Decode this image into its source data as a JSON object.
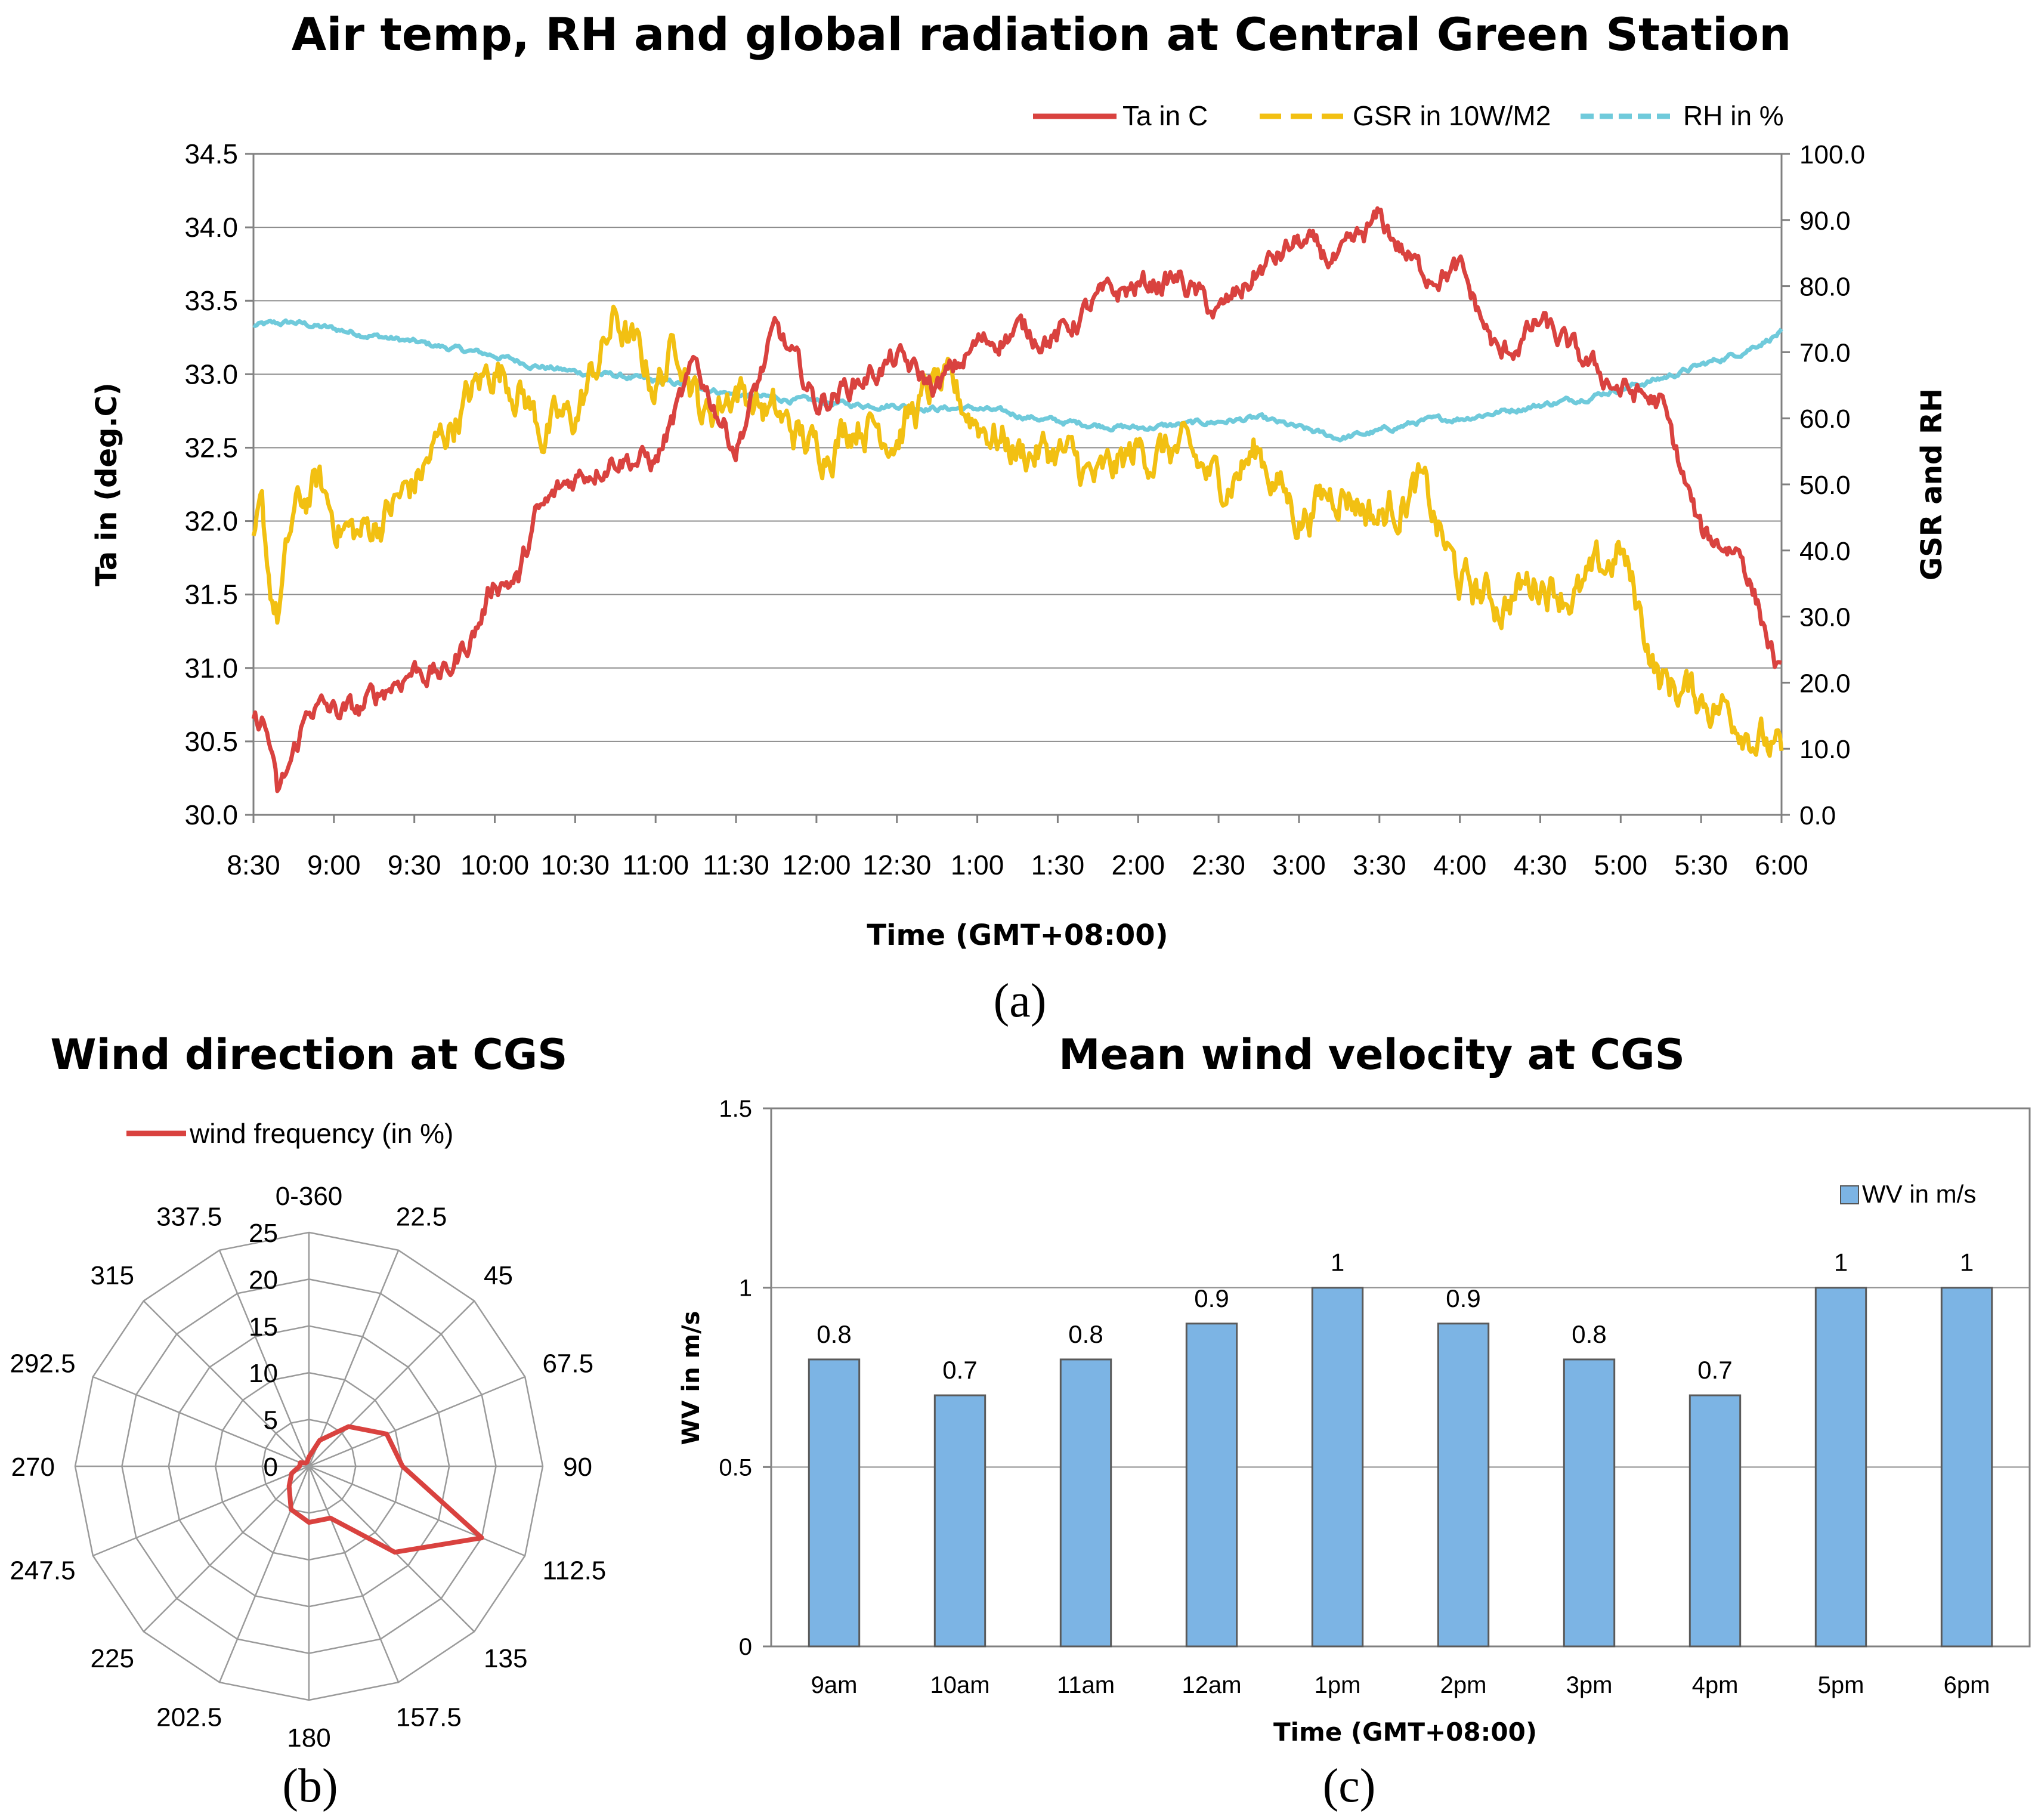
{
  "chart_data": [
    {
      "id": "a",
      "type": "line",
      "panel_label": "(a)",
      "title": "Air temp, RH and global radiation at Central Green Station",
      "xlabel": "Time (GMT+08:00)",
      "ylabel": "Ta in (deg.C)",
      "ylabel2": "GSR and RH",
      "x_ticks": [
        "8:30",
        "9:00",
        "9:30",
        "10:00",
        "10:30",
        "11:00",
        "11:30",
        "12:00",
        "12:30",
        "1:00",
        "1:30",
        "2:00",
        "2:30",
        "3:00",
        "3:30",
        "4:00",
        "4:30",
        "5:00",
        "5:30",
        "6:00"
      ],
      "ylim": [
        30.0,
        34.5
      ],
      "y_ticks": [
        "30.0",
        "30.5",
        "31.0",
        "31.5",
        "32.0",
        "32.5",
        "33.0",
        "33.5",
        "34.0",
        "34.5"
      ],
      "ylim2": [
        0.0,
        100.0
      ],
      "y2_ticks": [
        "0.0",
        "10.0",
        "20.0",
        "30.0",
        "40.0",
        "50.0",
        "60.0",
        "70.0",
        "80.0",
        "90.0",
        "100.0"
      ],
      "grid": true,
      "legend": "top-right",
      "series": [
        {
          "name": "Ta in C",
          "axis": "left",
          "color": "#d9423f",
          "x": [
            0,
            0.1,
            0.2,
            0.3,
            0.5,
            0.7,
            1,
            1.3,
            1.6,
            2,
            2.4,
            2.8,
            3,
            3.3,
            3.5,
            3.8,
            4,
            4.5,
            5,
            5.5,
            6,
            6.5,
            7,
            7.5,
            8,
            8.5,
            9,
            9.5,
            10,
            10.5,
            11,
            11.5,
            12,
            12.5,
            13,
            13.5,
            14,
            14.5,
            15,
            15.5,
            16,
            16.5,
            17,
            17.5,
            18,
            18.5,
            19
          ],
          "y": [
            30.6,
            30.65,
            30.5,
            30.1,
            30.4,
            30.75,
            30.7,
            30.7,
            30.85,
            31.0,
            30.95,
            31.3,
            31.6,
            31.6,
            32.0,
            32.2,
            32.3,
            32.45,
            32.4,
            33.05,
            32.5,
            33.3,
            32.8,
            32.95,
            33.1,
            32.9,
            33.2,
            33.3,
            33.25,
            33.5,
            33.6,
            33.65,
            33.4,
            33.7,
            33.9,
            33.75,
            34.05,
            33.7,
            33.7,
            33.1,
            33.35,
            33.1,
            32.9,
            32.8,
            31.9,
            31.8,
            30.9
          ],
          "noise": 0.08
        },
        {
          "name": "GSR in 10W/M2",
          "axis": "right",
          "color": "#f2c012",
          "dash": "dashed",
          "x": [
            0,
            0.1,
            0.2,
            0.3,
            0.5,
            0.8,
            1,
            1.3,
            1.6,
            2,
            2.5,
            3,
            3.3,
            3.6,
            4,
            4.5,
            5,
            5.3,
            5.6,
            6,
            6.5,
            7,
            7.5,
            8,
            8.5,
            9,
            9.5,
            10,
            10.5,
            11,
            11.5,
            12,
            12.5,
            13,
            13.5,
            14,
            14.5,
            15,
            15.5,
            16,
            16.5,
            17,
            17.5,
            18,
            18.5,
            19
          ],
          "y": [
            40,
            45,
            35,
            30,
            45,
            50,
            45,
            42,
            45,
            50,
            60,
            68,
            65,
            58,
            60,
            75,
            65,
            72,
            60,
            65,
            60,
            55,
            60,
            58,
            65,
            60,
            55,
            55,
            50,
            55,
            55,
            50,
            55,
            45,
            50,
            45,
            50,
            35,
            32,
            36,
            33,
            40,
            20,
            18,
            15,
            8
          ],
          "noise": 3.0
        },
        {
          "name": "RH in %",
          "axis": "right",
          "color": "#6fcadb",
          "dash": "dashed",
          "x": [
            0,
            0.5,
            1,
            1.5,
            2,
            2.5,
            3,
            3.5,
            4,
            4.5,
            5,
            5.5,
            6,
            6.5,
            7,
            7.5,
            8,
            8.5,
            9,
            9.5,
            10,
            10.5,
            11,
            11.5,
            12,
            12.5,
            13,
            13.5,
            14,
            14.5,
            15,
            15.5,
            16,
            16.5,
            17,
            17.5,
            18,
            18.5,
            19
          ],
          "y": [
            74,
            74.5,
            73.5,
            72.5,
            71.5,
            70.5,
            69.5,
            68,
            67,
            66.5,
            65.5,
            65,
            63.5,
            63,
            62.5,
            62,
            62,
            61.5,
            61.5,
            60.5,
            59.5,
            59,
            58.5,
            59,
            59.5,
            60,
            58.5,
            57,
            58,
            59.5,
            60,
            61,
            62,
            63,
            64.5,
            66,
            68,
            70,
            73
          ],
          "noise": 0.4
        }
      ]
    },
    {
      "id": "b",
      "type": "radar",
      "panel_label": "(b)",
      "title": "Wind direction at CGS",
      "legend": "top",
      "categories": [
        "0-360",
        "22.5",
        "45",
        "67.5",
        "90",
        "112.5",
        "135",
        "157.5",
        "180",
        "202.5",
        "225",
        "247.5",
        "270",
        "292.5",
        "315",
        "337.5"
      ],
      "r_ticks": [
        "0",
        "5",
        "10",
        "15",
        "20",
        "25"
      ],
      "rlim": [
        0,
        25
      ],
      "series": [
        {
          "name": "wind frequency (in %)",
          "color": "#d9423f",
          "values": [
            1,
            3,
            6,
            9,
            10,
            20,
            13,
            6,
            6,
            5,
            3,
            2,
            1,
            1,
            0.5,
            0.5
          ]
        }
      ]
    },
    {
      "id": "c",
      "type": "bar",
      "panel_label": "(c)",
      "title": "Mean wind velocity at CGS",
      "xlabel": "Time (GMT+08:00)",
      "ylabel": "WV in m/s",
      "ylim": [
        0,
        1.5
      ],
      "y_ticks": [
        "0",
        "0.5",
        "1",
        "1.5"
      ],
      "grid": true,
      "legend": "top-right",
      "categories": [
        "9am",
        "10am",
        "11am",
        "12am",
        "1pm",
        "2pm",
        "3pm",
        "4pm",
        "5pm",
        "6pm"
      ],
      "series": [
        {
          "name": "WV in m/s",
          "color": "#7cb4e4",
          "values": [
            0.8,
            0.7,
            0.8,
            0.9,
            1,
            0.9,
            0.8,
            0.7,
            1,
            1
          ],
          "labels": [
            "0.8",
            "0.7",
            "0.8",
            "0.9",
            "1",
            "0.9",
            "0.8",
            "0.7",
            "1",
            "1"
          ]
        }
      ]
    }
  ]
}
